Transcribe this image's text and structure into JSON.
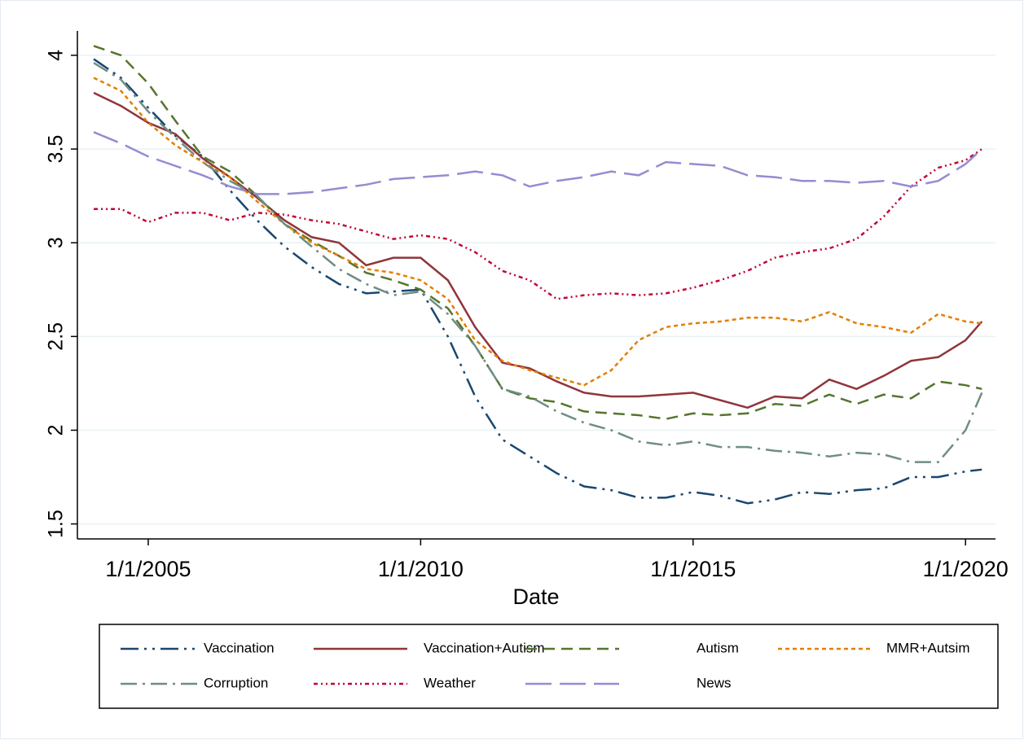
{
  "chart_data": {
    "type": "line",
    "xlabel": "Date",
    "xlim": [
      2003.7,
      2020.55
    ],
    "xticks": [
      {
        "value": 2005,
        "label": "1/1/2005"
      },
      {
        "value": 2010,
        "label": "1/1/2010"
      },
      {
        "value": 2015,
        "label": "1/1/2015"
      },
      {
        "value": 2020,
        "label": "1/1/2020"
      }
    ],
    "ylim": [
      1.42,
      4.13
    ],
    "yticks": [
      1.5,
      2,
      2.5,
      3,
      3.5,
      4
    ],
    "grid": true,
    "legend": "bottom",
    "x": [
      2004,
      2004.5,
      2005,
      2005.5,
      2006,
      2006.5,
      2007,
      2007.5,
      2008,
      2008.5,
      2009,
      2009.5,
      2010,
      2010.5,
      2011,
      2011.5,
      2012,
      2012.5,
      2013,
      2013.5,
      2014,
      2014.5,
      2015,
      2015.5,
      2016,
      2016.5,
      2017,
      2017.5,
      2018,
      2018.5,
      2019,
      2019.5,
      2020,
      2020.3
    ],
    "series": [
      {
        "name": "Vaccination",
        "color": "#1a476f",
        "dash": "22 7 3 7 3 7",
        "values": [
          3.98,
          3.88,
          3.72,
          3.57,
          3.46,
          3.28,
          3.12,
          2.98,
          2.87,
          2.78,
          2.73,
          2.74,
          2.75,
          2.5,
          2.18,
          1.95,
          1.86,
          1.77,
          1.7,
          1.68,
          1.64,
          1.64,
          1.67,
          1.65,
          1.61,
          1.63,
          1.67,
          1.66,
          1.68,
          1.69,
          1.75,
          1.75,
          1.78,
          1.79
        ]
      },
      {
        "name": "Vaccination+Autism",
        "color": "#90353b",
        "dash": "none",
        "values": [
          3.8,
          3.73,
          3.64,
          3.58,
          3.45,
          3.35,
          3.24,
          3.12,
          3.03,
          3.0,
          2.88,
          2.92,
          2.92,
          2.8,
          2.55,
          2.36,
          2.33,
          2.26,
          2.2,
          2.18,
          2.18,
          2.19,
          2.2,
          2.16,
          2.12,
          2.18,
          2.17,
          2.27,
          2.22,
          2.29,
          2.37,
          2.39,
          2.48,
          2.58
        ]
      },
      {
        "name": "Autism",
        "color": "#55752f",
        "dash": "14 8",
        "values": [
          4.05,
          4.0,
          3.85,
          3.65,
          3.46,
          3.38,
          3.25,
          3.1,
          3.01,
          2.93,
          2.84,
          2.8,
          2.75,
          2.65,
          2.45,
          2.22,
          2.17,
          2.15,
          2.1,
          2.09,
          2.08,
          2.06,
          2.09,
          2.08,
          2.09,
          2.14,
          2.13,
          2.19,
          2.14,
          2.19,
          2.17,
          2.26,
          2.24,
          2.22
        ]
      },
      {
        "name": "MMR+Autsim",
        "color": "#e37e00",
        "dash": "5 4",
        "values": [
          3.88,
          3.81,
          3.64,
          3.52,
          3.43,
          3.35,
          3.22,
          3.1,
          3.0,
          2.93,
          2.86,
          2.84,
          2.8,
          2.7,
          2.48,
          2.37,
          2.32,
          2.28,
          2.24,
          2.32,
          2.48,
          2.55,
          2.57,
          2.58,
          2.6,
          2.6,
          2.58,
          2.63,
          2.57,
          2.55,
          2.52,
          2.62,
          2.58,
          2.57
        ]
      },
      {
        "name": "Corruption",
        "color": "#6e8e84",
        "dash": "20 7 3 7",
        "values": [
          3.96,
          3.87,
          3.7,
          3.56,
          3.43,
          3.33,
          3.25,
          3.1,
          2.98,
          2.86,
          2.78,
          2.72,
          2.74,
          2.62,
          2.45,
          2.22,
          2.18,
          2.1,
          2.04,
          2.0,
          1.94,
          1.92,
          1.94,
          1.91,
          1.91,
          1.89,
          1.88,
          1.86,
          1.88,
          1.87,
          1.83,
          1.83,
          2.0,
          2.2
        ]
      },
      {
        "name": "Weather",
        "color": "#c10534",
        "dash": "5 4 2 4 2 4",
        "values": [
          3.18,
          3.18,
          3.11,
          3.16,
          3.16,
          3.12,
          3.16,
          3.15,
          3.12,
          3.1,
          3.06,
          3.02,
          3.04,
          3.02,
          2.95,
          2.85,
          2.8,
          2.7,
          2.72,
          2.73,
          2.72,
          2.73,
          2.76,
          2.8,
          2.85,
          2.92,
          2.95,
          2.97,
          3.02,
          3.14,
          3.3,
          3.4,
          3.44,
          3.5
        ]
      },
      {
        "name": "News",
        "color": "#938dd2",
        "dash": "32 10",
        "values": [
          3.59,
          3.53,
          3.46,
          3.41,
          3.36,
          3.3,
          3.26,
          3.26,
          3.27,
          3.29,
          3.31,
          3.34,
          3.35,
          3.36,
          3.38,
          3.36,
          3.3,
          3.33,
          3.35,
          3.38,
          3.36,
          3.43,
          3.42,
          3.41,
          3.36,
          3.35,
          3.33,
          3.33,
          3.32,
          3.33,
          3.3,
          3.33,
          3.42,
          3.5
        ]
      }
    ]
  }
}
